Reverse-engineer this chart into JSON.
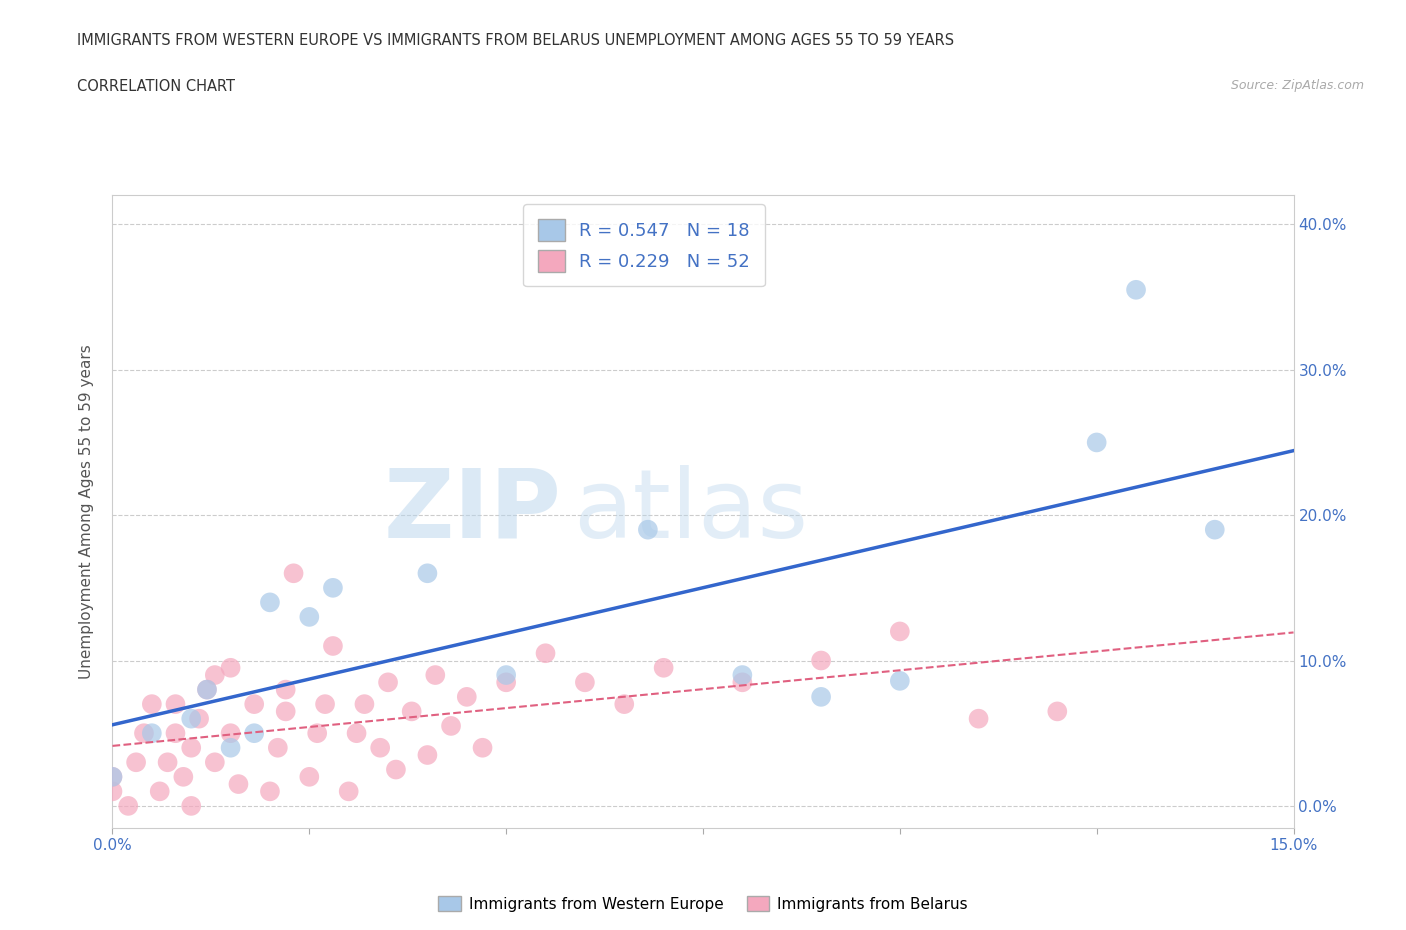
{
  "title_line1": "IMMIGRANTS FROM WESTERN EUROPE VS IMMIGRANTS FROM BELARUS UNEMPLOYMENT AMONG AGES 55 TO 59 YEARS",
  "title_line2": "CORRELATION CHART",
  "source_text": "Source: ZipAtlas.com",
  "ylabel": "Unemployment Among Ages 55 to 59 years",
  "watermark_zip": "ZIP",
  "watermark_atlas": "atlas",
  "legend_bottom": [
    "Immigrants from Western Europe",
    "Immigrants from Belarus"
  ],
  "R_western": 0.547,
  "N_western": 18,
  "R_belarus": 0.229,
  "N_belarus": 52,
  "color_western": "#a8c8e8",
  "color_belarus": "#f4a8be",
  "line_western": "#3366cc",
  "line_belarus": "#e06080",
  "xmin": 0.0,
  "xmax": 0.15,
  "ymin": -0.015,
  "ymax": 0.42,
  "western_x": [
    0.0,
    0.005,
    0.01,
    0.012,
    0.015,
    0.018,
    0.02,
    0.025,
    0.028,
    0.04,
    0.05,
    0.068,
    0.08,
    0.09,
    0.1,
    0.125,
    0.13,
    0.14
  ],
  "western_y": [
    0.02,
    0.05,
    0.06,
    0.08,
    0.04,
    0.05,
    0.14,
    0.13,
    0.15,
    0.16,
    0.09,
    0.19,
    0.09,
    0.075,
    0.086,
    0.25,
    0.355,
    0.19
  ],
  "belarus_x": [
    0.0,
    0.0,
    0.002,
    0.003,
    0.004,
    0.005,
    0.006,
    0.007,
    0.008,
    0.008,
    0.009,
    0.01,
    0.01,
    0.011,
    0.012,
    0.013,
    0.013,
    0.015,
    0.015,
    0.016,
    0.018,
    0.02,
    0.021,
    0.022,
    0.022,
    0.023,
    0.025,
    0.026,
    0.027,
    0.028,
    0.03,
    0.031,
    0.032,
    0.034,
    0.035,
    0.036,
    0.038,
    0.04,
    0.041,
    0.043,
    0.045,
    0.047,
    0.05,
    0.055,
    0.06,
    0.065,
    0.07,
    0.08,
    0.09,
    0.1,
    0.11,
    0.12
  ],
  "belarus_y": [
    0.01,
    0.02,
    0.0,
    0.03,
    0.05,
    0.07,
    0.01,
    0.03,
    0.05,
    0.07,
    0.02,
    0.0,
    0.04,
    0.06,
    0.08,
    0.03,
    0.09,
    0.05,
    0.095,
    0.015,
    0.07,
    0.01,
    0.04,
    0.065,
    0.08,
    0.16,
    0.02,
    0.05,
    0.07,
    0.11,
    0.01,
    0.05,
    0.07,
    0.04,
    0.085,
    0.025,
    0.065,
    0.035,
    0.09,
    0.055,
    0.075,
    0.04,
    0.085,
    0.105,
    0.085,
    0.07,
    0.095,
    0.085,
    0.1,
    0.12,
    0.06,
    0.065
  ],
  "yticks": [
    0.0,
    0.1,
    0.2,
    0.3,
    0.4
  ],
  "ytick_labels": [
    "0.0%",
    "10.0%",
    "20.0%",
    "30.0%",
    "40.0%"
  ],
  "xticks": [
    0.0,
    0.025,
    0.05,
    0.075,
    0.1,
    0.125,
    0.15
  ],
  "xtick_labels": [
    "0.0%",
    "",
    "",
    "",
    "",
    "",
    "15.0%"
  ],
  "background_color": "#ffffff",
  "grid_color": "#cccccc",
  "tick_color": "#4472c4",
  "ylabel_color": "#555555",
  "title_color": "#333333"
}
